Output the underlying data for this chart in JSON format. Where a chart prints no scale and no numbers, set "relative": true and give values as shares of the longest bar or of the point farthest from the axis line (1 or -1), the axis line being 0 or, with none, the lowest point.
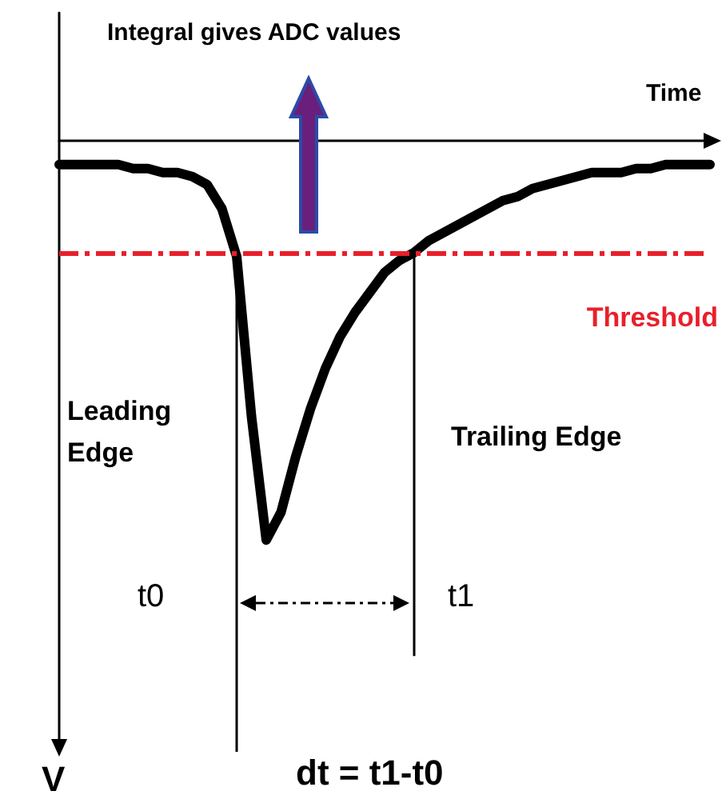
{
  "chart_data": {
    "type": "line",
    "relative": true,
    "title": "Integral gives ADC values",
    "xlabel": "Time",
    "categories": [
      null,
      null,
      null,
      null,
      null,
      null,
      null,
      null,
      null,
      null,
      null,
      null,
      null,
      null,
      null,
      null,
      null,
      null,
      null,
      null,
      null,
      null,
      null,
      null,
      null,
      null,
      null,
      null,
      null,
      null,
      null,
      null,
      null,
      null,
      null,
      null,
      null,
      null,
      null,
      null,
      null,
      null,
      null,
      null,
      null
    ],
    "series": [
      {
        "color": "#000000",
        "values": [
          -0.06,
          -0.06,
          -0.06,
          -0.06,
          -0.06,
          -0.07,
          -0.07,
          -0.08,
          -0.08,
          -0.09,
          -0.11,
          -0.17,
          -0.29,
          -0.69,
          -1,
          -0.93,
          -0.79,
          -0.67,
          -0.57,
          -0.49,
          -0.43,
          -0.38,
          -0.33,
          -0.3,
          -0.28,
          -0.25,
          -0.23,
          -0.21,
          -0.19,
          -0.17,
          -0.15,
          -0.14,
          -0.12,
          -0.11,
          -0.1,
          -0.09,
          -0.08,
          -0.08,
          -0.08,
          -0.07,
          -0.07,
          -0.06,
          -0.06,
          -0.06,
          -0.06
        ]
      }
    ],
    "ref_lines": [
      {
        "axis": "y",
        "value": -0.28,
        "label": "Threshold",
        "color": "#e8202a",
        "line_style": "dashdot"
      }
    ],
    "annotations": [
      "Leading Edge",
      "Trailing Edge",
      "dt = t1-t0",
      "t0",
      "t1",
      "V"
    ],
    "marker": "none",
    "line_style": "solid",
    "grid": false
  }
}
